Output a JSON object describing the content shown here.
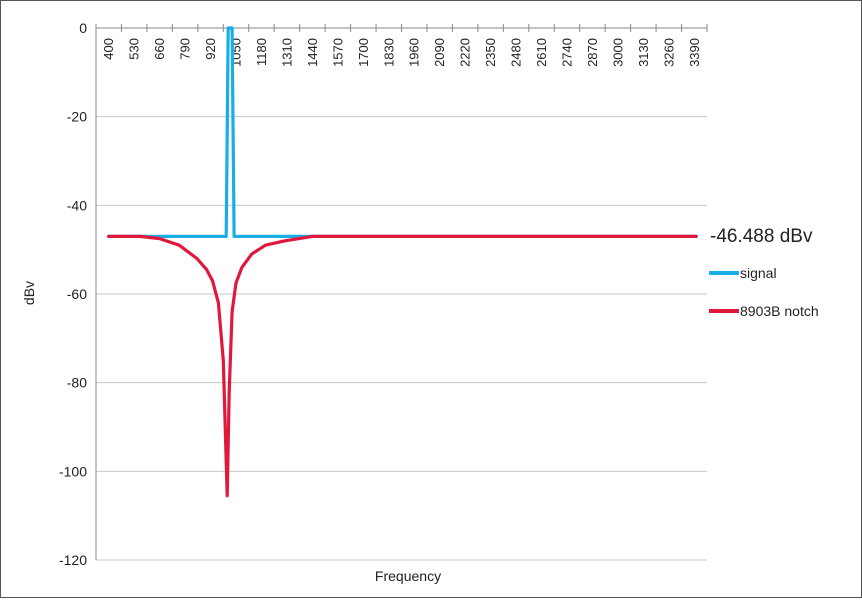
{
  "chart_data": {
    "type": "line",
    "xlabel": "Frequency",
    "ylabel": "dBv",
    "ylim": [
      -120,
      0
    ],
    "yticks": [
      0,
      -20,
      -40,
      -60,
      -80,
      -100,
      -120
    ],
    "categories": [
      "400",
      "530",
      "660",
      "790",
      "920",
      "1050",
      "1180",
      "1310",
      "1440",
      "1570",
      "1700",
      "1830",
      "1960",
      "2090",
      "2220",
      "2350",
      "2480",
      "2610",
      "2740",
      "2870",
      "3000",
      "3130",
      "3260",
      "3390"
    ],
    "xlim": [
      400,
      3390
    ],
    "grid": true,
    "legend_position": "right",
    "annotation": "-46.488 dBv",
    "series": [
      {
        "name": "signal",
        "color": "#19aee6",
        "points": [
          [
            400,
            -47
          ],
          [
            1000,
            -47
          ],
          [
            1010,
            0
          ],
          [
            1030,
            0
          ],
          [
            1040,
            -47
          ],
          [
            3400,
            -47
          ]
        ]
      },
      {
        "name": "8903B notch",
        "color": "#e0183c",
        "points": [
          [
            400,
            -47
          ],
          [
            560,
            -47
          ],
          [
            660,
            -47.5
          ],
          [
            760,
            -49
          ],
          [
            850,
            -52
          ],
          [
            900,
            -54.5
          ],
          [
            930,
            -57
          ],
          [
            960,
            -62
          ],
          [
            985,
            -75
          ],
          [
            1005,
            -105.5
          ],
          [
            1015,
            -82
          ],
          [
            1030,
            -64
          ],
          [
            1050,
            -57.5
          ],
          [
            1080,
            -54
          ],
          [
            1130,
            -51
          ],
          [
            1200,
            -49
          ],
          [
            1300,
            -48
          ],
          [
            1440,
            -47
          ],
          [
            3400,
            -47
          ]
        ]
      }
    ]
  }
}
